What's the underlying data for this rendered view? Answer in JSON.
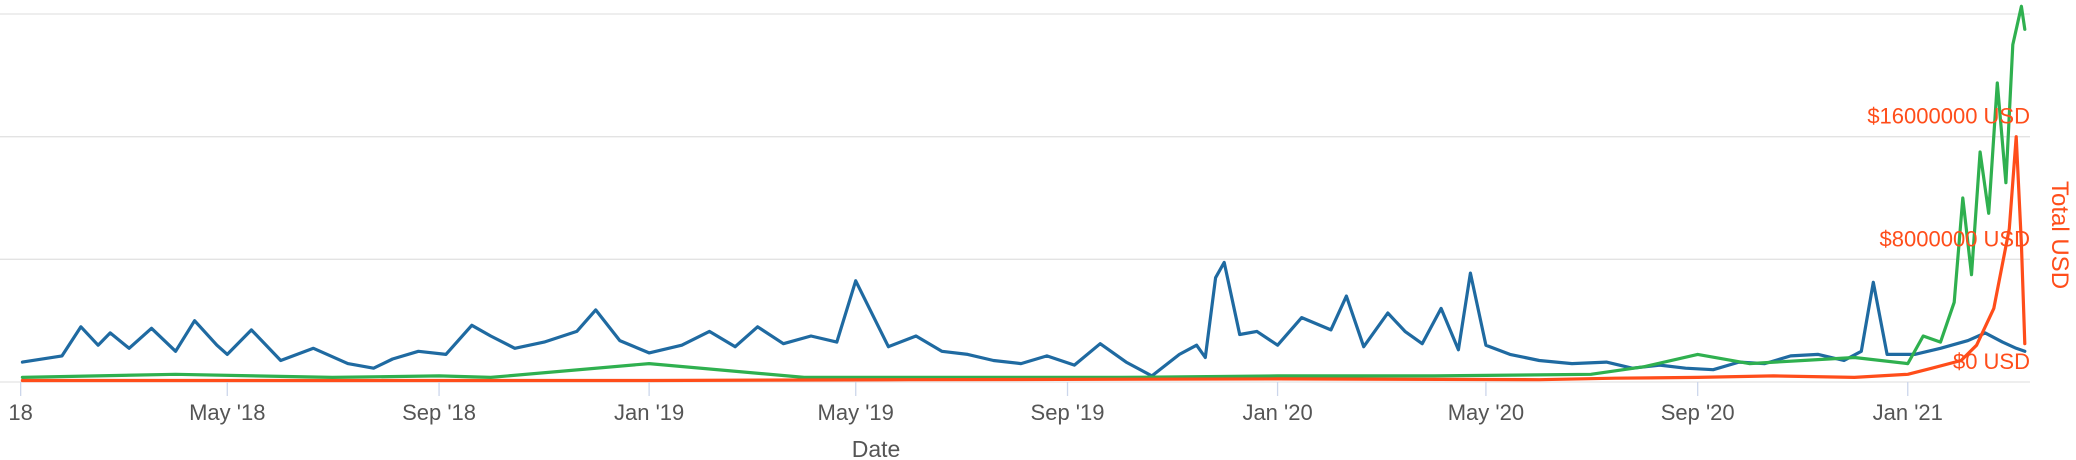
{
  "chart_data": {
    "type": "line",
    "xlabel": "Date",
    "x_ticks": [
      "18",
      "May '18",
      "Sep '18",
      "Jan '19",
      "May '19",
      "Sep '19",
      "Jan '20",
      "May '20",
      "Sep '20",
      "Jan '21"
    ],
    "y_right": {
      "title": "Total USD",
      "ticks": [
        "$0 USD",
        "$8000000 USD",
        "$16000000 USD"
      ],
      "range": [
        0,
        24000000
      ],
      "color": "#ff4d1a"
    },
    "gridlines": true,
    "colors": {
      "blue": "#1f6aa1",
      "green": "#2fb04f",
      "orange": "#ff4d1a",
      "grid": "#e3e3e3",
      "text": "#555555"
    },
    "series": [
      {
        "color": "#1f6aa1",
        "x": [
          "2018-01-02",
          "2018-01-25",
          "2018-02-05",
          "2018-02-15",
          "2018-02-22",
          "2018-03-05",
          "2018-03-18",
          "2018-04-01",
          "2018-04-12",
          "2018-04-25",
          "2018-05-01",
          "2018-05-15",
          "2018-06-01",
          "2018-06-20",
          "2018-07-10",
          "2018-07-25",
          "2018-08-05",
          "2018-08-20",
          "2018-09-05",
          "2018-09-20",
          "2018-10-01",
          "2018-10-15",
          "2018-11-01",
          "2018-11-20",
          "2018-12-01",
          "2018-12-15",
          "2019-01-01",
          "2019-01-20",
          "2019-02-05",
          "2019-02-20",
          "2019-03-05",
          "2019-03-20",
          "2019-04-05",
          "2019-04-20",
          "2019-05-01",
          "2019-05-20",
          "2019-06-05",
          "2019-06-20",
          "2019-07-05",
          "2019-07-20",
          "2019-08-05",
          "2019-08-20",
          "2019-09-05",
          "2019-09-20",
          "2019-10-05",
          "2019-10-20",
          "2019-11-05",
          "2019-11-15",
          "2019-11-20",
          "2019-11-26",
          "2019-12-01",
          "2019-12-10",
          "2019-12-20",
          "2020-01-01",
          "2020-01-15",
          "2020-02-01",
          "2020-02-10",
          "2020-02-20",
          "2020-03-05",
          "2020-03-15",
          "2020-03-25",
          "2020-04-05",
          "2020-04-15",
          "2020-04-22",
          "2020-05-01",
          "2020-05-15",
          "2020-06-01",
          "2020-06-20",
          "2020-07-10",
          "2020-07-25",
          "2020-08-10",
          "2020-08-25",
          "2020-09-10",
          "2020-09-25",
          "2020-10-10",
          "2020-10-25",
          "2020-11-10",
          "2020-11-25",
          "2020-12-05",
          "2020-12-12",
          "2020-12-20",
          "2021-01-05",
          "2021-01-20",
          "2021-02-05",
          "2021-02-15",
          "2021-02-25",
          "2021-03-05",
          "2021-03-10"
        ],
        "y": [
          1300000,
          1700000,
          3600000,
          2400000,
          3200000,
          2200000,
          3500000,
          2000000,
          4000000,
          2400000,
          1800000,
          3400000,
          1400000,
          2200000,
          1200000,
          900000,
          1500000,
          2000000,
          1800000,
          3700000,
          3000000,
          2200000,
          2600000,
          3300000,
          4700000,
          2700000,
          1900000,
          2400000,
          3300000,
          2300000,
          3600000,
          2500000,
          3000000,
          2600000,
          6600000,
          2300000,
          3000000,
          2000000,
          1800000,
          1400000,
          1200000,
          1700000,
          1100000,
          2500000,
          1300000,
          400000,
          1800000,
          2400000,
          1600000,
          6800000,
          7800000,
          3100000,
          3300000,
          2400000,
          4200000,
          3400000,
          5600000,
          2300000,
          4500000,
          3300000,
          2500000,
          4800000,
          2100000,
          7100000,
          2400000,
          1800000,
          1400000,
          1200000,
          1300000,
          900000,
          1100000,
          900000,
          800000,
          1300000,
          1200000,
          1700000,
          1800000,
          1400000,
          2000000,
          6500000,
          1800000,
          1800000,
          2200000,
          2700000,
          3200000,
          2600000,
          2200000,
          2000000
        ]
      },
      {
        "color": "#2fb04f",
        "x": [
          "2018-01-02",
          "2018-04-01",
          "2018-07-01",
          "2018-09-01",
          "2018-10-01",
          "2019-01-01",
          "2019-04-01",
          "2019-07-01",
          "2019-10-01",
          "2020-01-01",
          "2020-04-01",
          "2020-07-01",
          "2020-08-01",
          "2020-09-01",
          "2020-10-01",
          "2020-11-01",
          "2020-12-01",
          "2021-01-01",
          "2021-01-10",
          "2021-01-20",
          "2021-01-28",
          "2021-02-02",
          "2021-02-07",
          "2021-02-12",
          "2021-02-17",
          "2021-02-22",
          "2021-02-27",
          "2021-03-03",
          "2021-03-08",
          "2021-03-10"
        ],
        "y": [
          300000,
          500000,
          300000,
          400000,
          300000,
          1200000,
          300000,
          300000,
          300000,
          400000,
          400000,
          500000,
          1000000,
          1800000,
          1200000,
          1400000,
          1600000,
          1200000,
          3000000,
          2600000,
          5200000,
          12000000,
          7000000,
          15000000,
          11000000,
          19500000,
          13000000,
          22000000,
          24500000,
          23000000
        ]
      },
      {
        "color": "#ff4d1a",
        "x": [
          "2018-01-02",
          "2018-06-01",
          "2019-01-01",
          "2019-06-01",
          "2020-01-01",
          "2020-06-01",
          "2020-07-15",
          "2020-09-01",
          "2020-10-15",
          "2020-12-01",
          "2021-01-01",
          "2021-01-15",
          "2021-02-01",
          "2021-02-10",
          "2021-02-20",
          "2021-03-01",
          "2021-03-05",
          "2021-03-08",
          "2021-03-10"
        ],
        "y": [
          100000,
          100000,
          100000,
          150000,
          200000,
          150000,
          250000,
          300000,
          400000,
          300000,
          500000,
          900000,
          1400000,
          2400000,
          4800000,
          10000000,
          16000000,
          9000000,
          2500000
        ]
      }
    ]
  }
}
